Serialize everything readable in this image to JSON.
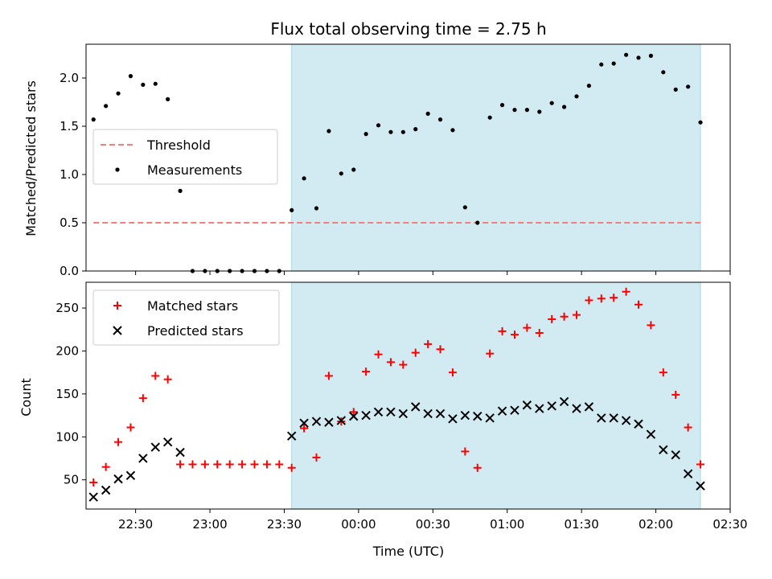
{
  "chart_data": [
    {
      "type": "scatter",
      "title": "Flux total observing time = 2.75 h",
      "xlabel": "",
      "ylabel": "Matched/Predicted stars",
      "xlim": [
        "22:10",
        "02:30"
      ],
      "ylim": [
        0,
        2.35
      ],
      "yticks": [
        "0.0",
        "0.5",
        "1.0",
        "1.5",
        "2.0"
      ],
      "shaded_interval": [
        "23:33",
        "02:18"
      ],
      "legend": {
        "position": "center-left",
        "entries": [
          "Threshold",
          "Measurements"
        ]
      },
      "series": [
        {
          "name": "Threshold",
          "kind": "dashed-line",
          "color": "#f08080",
          "x": [
            "22:13",
            "02:18"
          ],
          "y": [
            0.5,
            0.5
          ]
        },
        {
          "name": "Measurements",
          "kind": "dot",
          "color": "#000000",
          "x": [
            "22:13",
            "22:18",
            "22:23",
            "22:28",
            "22:33",
            "22:38",
            "22:43",
            "22:48",
            "22:53",
            "22:58",
            "23:03",
            "23:08",
            "23:13",
            "23:18",
            "23:23",
            "23:28",
            "23:33",
            "23:38",
            "23:43",
            "23:48",
            "23:53",
            "23:58",
            "00:03",
            "00:08",
            "00:13",
            "00:18",
            "00:23",
            "00:28",
            "00:33",
            "00:38",
            "00:43",
            "00:48",
            "00:53",
            "00:58",
            "01:03",
            "01:08",
            "01:13",
            "01:18",
            "01:23",
            "01:28",
            "01:33",
            "01:38",
            "01:43",
            "01:48",
            "01:53",
            "01:58",
            "02:03",
            "02:08",
            "02:13",
            "02:18"
          ],
          "y": [
            1.57,
            1.71,
            1.84,
            2.02,
            1.93,
            1.94,
            1.78,
            0.83,
            0.0,
            0.0,
            0.0,
            0.0,
            0.0,
            0.0,
            0.0,
            0.0,
            0.63,
            0.96,
            0.65,
            1.45,
            1.01,
            1.05,
            1.42,
            1.51,
            1.44,
            1.44,
            1.47,
            1.63,
            1.57,
            1.46,
            0.66,
            0.5,
            1.59,
            1.72,
            1.67,
            1.67,
            1.65,
            1.74,
            1.7,
            1.81,
            1.92,
            2.14,
            2.15,
            2.24,
            2.21,
            2.23,
            2.06,
            1.88,
            1.91,
            1.54
          ]
        }
      ]
    },
    {
      "type": "scatter",
      "title": "",
      "xlabel": "Time (UTC)",
      "ylabel": "Count",
      "xlim": [
        "22:10",
        "02:30"
      ],
      "ylim": [
        16,
        280
      ],
      "yticks": [
        "50",
        "100",
        "150",
        "200",
        "250"
      ],
      "xticks": [
        "22:30",
        "23:00",
        "23:30",
        "00:00",
        "00:30",
        "01:00",
        "01:30",
        "02:00",
        "02:30"
      ],
      "shaded_interval": [
        "23:33",
        "02:18"
      ],
      "legend": {
        "position": "top-left",
        "entries": [
          "Matched stars",
          "Predicted stars"
        ]
      },
      "series": [
        {
          "name": "Matched stars",
          "kind": "plus",
          "color": "#ff0000",
          "x": [
            "22:13",
            "22:18",
            "22:23",
            "22:28",
            "22:33",
            "22:38",
            "22:43",
            "22:48",
            "22:53",
            "22:58",
            "23:03",
            "23:08",
            "23:13",
            "23:18",
            "23:23",
            "23:28",
            "23:33",
            "23:38",
            "23:43",
            "23:48",
            "23:53",
            "23:58",
            "00:03",
            "00:08",
            "00:13",
            "00:18",
            "00:23",
            "00:28",
            "00:33",
            "00:38",
            "00:43",
            "00:48",
            "00:53",
            "00:58",
            "01:03",
            "01:08",
            "01:13",
            "01:18",
            "01:23",
            "01:28",
            "01:33",
            "01:38",
            "01:43",
            "01:48",
            "01:53",
            "01:58",
            "02:03",
            "02:08",
            "02:13",
            "02:18"
          ],
          "y": [
            47,
            65,
            94,
            111,
            145,
            171,
            167,
            68,
            68,
            68,
            68,
            68,
            68,
            68,
            68,
            68,
            64,
            110,
            76,
            171,
            118,
            129,
            176,
            196,
            187,
            184,
            198,
            208,
            202,
            175,
            83,
            64,
            197,
            223,
            219,
            227,
            221,
            237,
            240,
            242,
            259,
            261,
            262,
            269,
            254,
            230,
            175,
            149,
            111,
            68
          ]
        },
        {
          "name": "Predicted stars",
          "kind": "x",
          "color": "#000000",
          "x": [
            "22:13",
            "22:18",
            "22:23",
            "22:28",
            "22:33",
            "22:38",
            "22:43",
            "22:48",
            "23:33",
            "23:38",
            "23:43",
            "23:48",
            "23:53",
            "23:58",
            "00:03",
            "00:08",
            "00:13",
            "00:18",
            "00:23",
            "00:28",
            "00:33",
            "00:38",
            "00:43",
            "00:48",
            "00:53",
            "00:58",
            "01:03",
            "01:08",
            "01:13",
            "01:18",
            "01:23",
            "01:28",
            "01:33",
            "01:38",
            "01:43",
            "01:48",
            "01:53",
            "01:58",
            "02:03",
            "02:08",
            "02:13",
            "02:18"
          ],
          "y": [
            30,
            38,
            51,
            55,
            75,
            88,
            94,
            82,
            101,
            116,
            118,
            117,
            119,
            124,
            125,
            129,
            129,
            127,
            135,
            127,
            127,
            121,
            125,
            124,
            122,
            130,
            131,
            137,
            133,
            136,
            141,
            133,
            135,
            122,
            122,
            119,
            115,
            103,
            85,
            79,
            57,
            43
          ]
        }
      ]
    }
  ],
  "colors": {
    "shade": "#add8e6",
    "matched": "#ff0000",
    "predicted": "#000000",
    "threshold": "#f08080"
  }
}
